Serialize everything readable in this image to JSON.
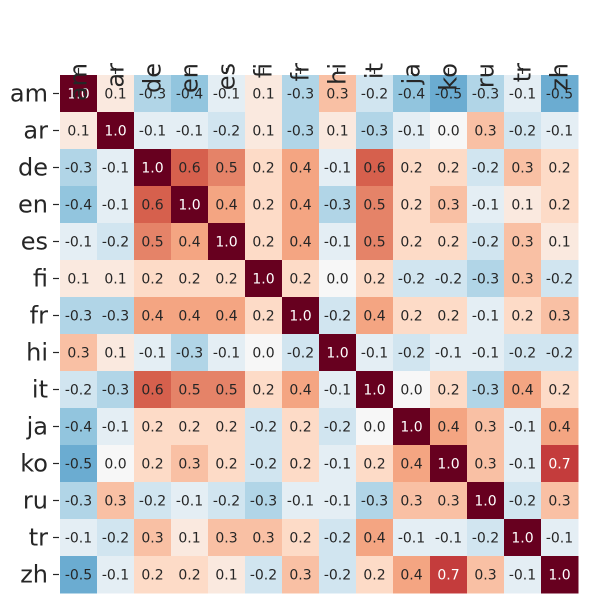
{
  "chart_data": {
    "type": "heatmap",
    "title": "",
    "xlabel": "",
    "ylabel": "",
    "x_labels": [
      "am",
      "ar",
      "de",
      "en",
      "es",
      "fi",
      "fr",
      "hi",
      "it",
      "ja",
      "ko",
      "ru",
      "tr",
      "zh"
    ],
    "y_labels": [
      "am",
      "ar",
      "de",
      "en",
      "es",
      "fi",
      "fr",
      "hi",
      "it",
      "ja",
      "ko",
      "ru",
      "tr",
      "zh"
    ],
    "values": [
      [
        1.0,
        0.1,
        -0.3,
        -0.4,
        -0.1,
        0.1,
        -0.3,
        0.3,
        -0.2,
        -0.4,
        -0.5,
        -0.3,
        -0.1,
        -0.5
      ],
      [
        0.1,
        1.0,
        -0.1,
        -0.1,
        -0.2,
        0.1,
        -0.3,
        0.1,
        -0.3,
        -0.1,
        0.0,
        0.3,
        -0.2,
        -0.1
      ],
      [
        -0.3,
        -0.1,
        1.0,
        0.6,
        0.5,
        0.2,
        0.4,
        -0.1,
        0.6,
        0.2,
        0.2,
        -0.2,
        0.3,
        0.2
      ],
      [
        -0.4,
        -0.1,
        0.6,
        1.0,
        0.4,
        0.2,
        0.4,
        -0.3,
        0.5,
        0.2,
        0.3,
        -0.1,
        0.1,
        0.2
      ],
      [
        -0.1,
        -0.2,
        0.5,
        0.4,
        1.0,
        0.2,
        0.4,
        -0.1,
        0.5,
        0.2,
        0.2,
        -0.2,
        0.3,
        0.1
      ],
      [
        0.1,
        0.1,
        0.2,
        0.2,
        0.2,
        1.0,
        0.2,
        0.0,
        0.2,
        -0.2,
        -0.2,
        -0.3,
        0.3,
        -0.2
      ],
      [
        -0.3,
        -0.3,
        0.4,
        0.4,
        0.4,
        0.2,
        1.0,
        -0.2,
        0.4,
        0.2,
        0.2,
        -0.1,
        0.2,
        0.3
      ],
      [
        0.3,
        0.1,
        -0.1,
        -0.3,
        -0.1,
        0.0,
        -0.2,
        1.0,
        -0.1,
        -0.2,
        -0.1,
        -0.1,
        -0.2,
        -0.2
      ],
      [
        -0.2,
        -0.3,
        0.6,
        0.5,
        0.5,
        0.2,
        0.4,
        -0.1,
        1.0,
        0.0,
        0.2,
        -0.3,
        0.4,
        0.2
      ],
      [
        -0.4,
        -0.1,
        0.2,
        0.2,
        0.2,
        -0.2,
        0.2,
        -0.2,
        0.0,
        1.0,
        0.4,
        0.3,
        -0.1,
        0.4
      ],
      [
        -0.5,
        0.0,
        0.2,
        0.3,
        0.2,
        -0.2,
        0.2,
        -0.1,
        0.2,
        0.4,
        1.0,
        0.3,
        -0.1,
        0.7
      ],
      [
        -0.3,
        0.3,
        -0.2,
        -0.1,
        -0.2,
        -0.3,
        -0.1,
        -0.1,
        -0.3,
        0.3,
        0.3,
        1.0,
        -0.2,
        0.3
      ],
      [
        -0.1,
        -0.2,
        0.3,
        0.1,
        0.3,
        0.3,
        0.2,
        -0.2,
        0.4,
        -0.1,
        -0.1,
        -0.2,
        1.0,
        -0.1
      ],
      [
        -0.5,
        -0.1,
        0.2,
        0.2,
        0.1,
        -0.2,
        0.3,
        -0.2,
        0.2,
        0.4,
        0.7,
        0.3,
        -0.1,
        1.0
      ]
    ],
    "value_range": [
      -1,
      1
    ],
    "colormap": "RdBu_r",
    "grid": false,
    "legend": "none"
  }
}
